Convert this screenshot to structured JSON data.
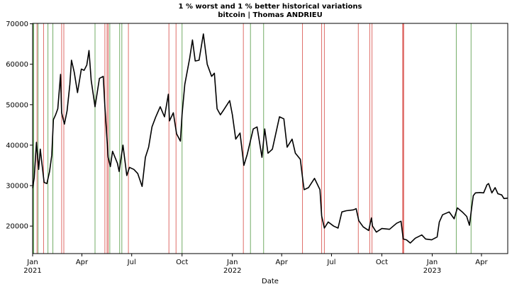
{
  "chart_data": {
    "type": "line",
    "title": "1 % worst and 1 % better historical variations",
    "subtitle": "bitcoin | Thomas ANDRIEU",
    "xlabel": "Date",
    "x": [
      "2021-01-01",
      "2021-01-04",
      "2021-01-08",
      "2021-01-12",
      "2021-01-15",
      "2021-01-22",
      "2021-01-27",
      "2021-02-01",
      "2021-02-05",
      "2021-02-08",
      "2021-02-12",
      "2021-02-16",
      "2021-02-21",
      "2021-02-23",
      "2021-02-28",
      "2021-03-05",
      "2021-03-10",
      "2021-03-13",
      "2021-03-18",
      "2021-03-24",
      "2021-03-31",
      "2021-04-05",
      "2021-04-10",
      "2021-04-14",
      "2021-04-18",
      "2021-04-25",
      "2021-05-03",
      "2021-05-10",
      "2021-05-13",
      "2021-05-19",
      "2021-05-23",
      "2021-05-27",
      "2021-06-05",
      "2021-06-08",
      "2021-06-15",
      "2021-06-22",
      "2021-06-27",
      "2021-07-05",
      "2021-07-12",
      "2021-07-20",
      "2021-07-26",
      "2021-08-01",
      "2021-08-07",
      "2021-08-14",
      "2021-08-22",
      "2021-08-30",
      "2021-09-06",
      "2021-09-08",
      "2021-09-15",
      "2021-09-21",
      "2021-09-28",
      "2021-10-01",
      "2021-10-06",
      "2021-10-15",
      "2021-10-20",
      "2021-10-25",
      "2021-11-01",
      "2021-11-09",
      "2021-11-16",
      "2021-11-24",
      "2021-11-29",
      "2021-12-04",
      "2021-12-10",
      "2021-12-15",
      "2021-12-27",
      "2022-01-01",
      "2022-01-07",
      "2022-01-15",
      "2022-01-22",
      "2022-01-28",
      "2022-02-08",
      "2022-02-15",
      "2022-02-24",
      "2022-03-01",
      "2022-03-07",
      "2022-03-15",
      "2022-03-28",
      "2022-04-05",
      "2022-04-11",
      "2022-04-20",
      "2022-04-26",
      "2022-05-05",
      "2022-05-10",
      "2022-05-12",
      "2022-05-20",
      "2022-05-31",
      "2022-06-10",
      "2022-06-13",
      "2022-06-18",
      "2022-06-25",
      "2022-07-05",
      "2022-07-13",
      "2022-07-20",
      "2022-07-28",
      "2022-08-10",
      "2022-08-15",
      "2022-08-20",
      "2022-08-28",
      "2022-09-07",
      "2022-09-12",
      "2022-09-14",
      "2022-09-21",
      "2022-10-01",
      "2022-10-15",
      "2022-10-28",
      "2022-11-05",
      "2022-11-09",
      "2022-11-15",
      "2022-11-22",
      "2022-12-01",
      "2022-12-13",
      "2022-12-20",
      "2022-12-31",
      "2023-01-10",
      "2023-01-14",
      "2023-01-20",
      "2023-02-01",
      "2023-02-10",
      "2023-02-16",
      "2023-02-25",
      "2023-03-05",
      "2023-03-10",
      "2023-03-14",
      "2023-03-17",
      "2023-03-21",
      "2023-03-29",
      "2023-04-05",
      "2023-04-11",
      "2023-04-14",
      "2023-04-20",
      "2023-04-26",
      "2023-05-01",
      "2023-05-08",
      "2023-05-12",
      "2023-05-19"
    ],
    "series": [
      {
        "color": "#000000",
        "values": [
          29400,
          32000,
          40700,
          34000,
          39000,
          30800,
          30500,
          33500,
          37500,
          46300,
          47500,
          49000,
          57500,
          48000,
          45200,
          48500,
          55000,
          61000,
          58000,
          53000,
          58800,
          58500,
          59800,
          63400,
          56000,
          49500,
          56500,
          57000,
          49500,
          37000,
          34700,
          38500,
          35500,
          33500,
          40000,
          32500,
          34500,
          34000,
          33000,
          29800,
          37000,
          39500,
          44500,
          47000,
          49500,
          47000,
          52600,
          46000,
          48000,
          42800,
          41000,
          47500,
          55000,
          61500,
          66000,
          60800,
          61000,
          67500,
          60000,
          57000,
          57800,
          49000,
          47500,
          48500,
          51000,
          47500,
          41500,
          43000,
          35000,
          37700,
          44000,
          44500,
          37000,
          44000,
          38000,
          39000,
          47000,
          46500,
          39500,
          41500,
          38000,
          36500,
          31000,
          29000,
          29500,
          31800,
          29000,
          22500,
          19500,
          21000,
          20000,
          19500,
          23500,
          23800,
          24000,
          24300,
          21300,
          19800,
          18900,
          22000,
          20000,
          18500,
          19400,
          19200,
          20700,
          21200,
          16800,
          16600,
          15800,
          17000,
          17800,
          16800,
          16600,
          17300,
          21000,
          22800,
          23500,
          21800,
          24500,
          23500,
          22400,
          20200,
          24500,
          27500,
          28200,
          28300,
          28200,
          30200,
          30500,
          28200,
          29500,
          28000,
          27700,
          26800,
          26900
        ]
      }
    ],
    "best_days": {
      "color": "#5a9e4b",
      "dates": [
        "2021-01-02",
        "2021-01-03",
        "2021-01-11",
        "2021-01-29",
        "2021-02-07",
        "2021-04-25",
        "2021-05-22",
        "2021-06-09",
        "2021-06-13",
        "2021-10-01",
        "2022-02-03",
        "2022-02-27",
        "2023-02-14",
        "2023-03-13"
      ]
    },
    "worst_days": {
      "color": "#d9534f",
      "dates": [
        "2021-01-09",
        "2021-01-21",
        "2021-02-23",
        "2021-02-27",
        "2021-05-13",
        "2021-05-17",
        "2021-05-19",
        "2021-06-25",
        "2021-09-07",
        "2021-09-20",
        "2022-01-21",
        "2022-05-09",
        "2022-06-13",
        "2022-06-18",
        "2022-08-19",
        "2022-09-09",
        "2022-09-13",
        "2022-11-08",
        "2022-11-09",
        "2022-11-10"
      ]
    },
    "xlim": [
      "2021-01-01",
      "2023-05-19"
    ],
    "xticks": [
      {
        "value": "2021-01-01",
        "label": "Jan\n2021"
      },
      {
        "value": "2021-04-01",
        "label": "Apr"
      },
      {
        "value": "2021-07-01",
        "label": "Jul"
      },
      {
        "value": "2021-10-01",
        "label": "Oct"
      },
      {
        "value": "2022-01-01",
        "label": "Jan\n2022"
      },
      {
        "value": "2022-04-01",
        "label": "Apr"
      },
      {
        "value": "2022-07-01",
        "label": "Jul"
      },
      {
        "value": "2022-10-01",
        "label": "Oct"
      },
      {
        "value": "2023-01-01",
        "label": "Jan\n2023"
      },
      {
        "value": "2023-04-01",
        "label": "Apr"
      }
    ],
    "ylim": [
      13200,
      70100
    ],
    "yticks": [
      20000,
      30000,
      40000,
      50000,
      60000,
      70000
    ]
  }
}
